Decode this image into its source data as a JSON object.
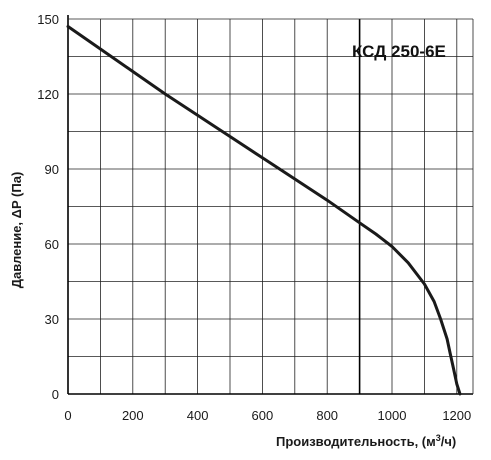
{
  "chart_data": {
    "type": "line",
    "model_label": "КСД 250-6Е",
    "xlabel": "Производительность, (м",
    "xlabel_sup": "3",
    "xlabel_end": "/ч)",
    "ylabel": "Давление, ΔP (Па)",
    "xlim": [
      0,
      1250
    ],
    "ylim": [
      0,
      150
    ],
    "x_ticks": [
      0,
      200,
      400,
      600,
      800,
      1000,
      1200
    ],
    "y_ticks": [
      0,
      30,
      60,
      90,
      120,
      150
    ],
    "x_tick_labels": [
      "0",
      "200",
      "400",
      "600",
      "800",
      "1000",
      "1200"
    ],
    "y_tick_labels": [
      "0",
      "30",
      "60",
      "90",
      "120",
      "150"
    ],
    "x_grid_step": 100,
    "y_grid_step": 15,
    "grid": true,
    "reference_line_x": 900,
    "series": [
      {
        "color": "#1a1a1a",
        "x": [
          0,
          100,
          200,
          300,
          400,
          500,
          600,
          700,
          800,
          900,
          950,
          1000,
          1050,
          1100,
          1130,
          1150,
          1170,
          1180,
          1190,
          1200,
          1210
        ],
        "y": [
          147,
          138,
          129,
          120,
          111.5,
          103,
          94.5,
          86,
          77.5,
          68.5,
          64,
          59,
          52.5,
          44,
          37,
          30,
          22,
          16,
          10,
          4,
          0
        ]
      }
    ]
  }
}
